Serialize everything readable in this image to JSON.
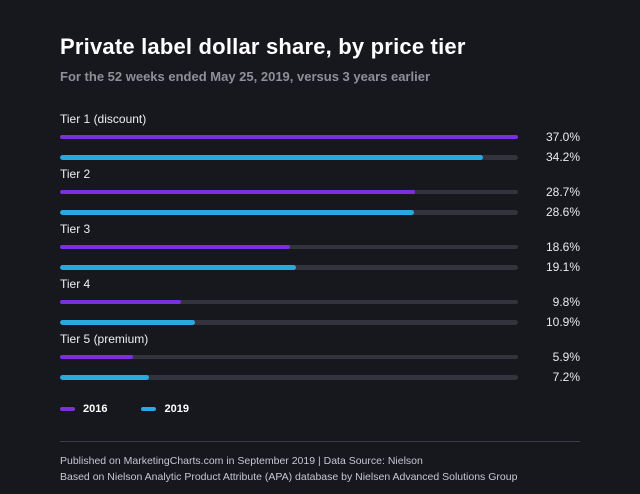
{
  "title": "Private label dollar share, by price tier",
  "subtitle": "For the 52 weeks ended May 25, 2019, versus 3 years earlier",
  "chart_data": {
    "type": "bar",
    "orientation": "horizontal",
    "title": "Private label dollar share, by price tier",
    "subtitle": "For the 52 weeks ended May 25, 2019, versus 3 years earlier",
    "categories": [
      "Tier 1 (discount)",
      "Tier 2",
      "Tier 3",
      "Tier 4",
      "Tier 5 (premium)"
    ],
    "series": [
      {
        "name": "2016",
        "color": "#7b2fe0",
        "thickness": 4,
        "values": [
          37.0,
          28.7,
          18.6,
          9.8,
          5.9
        ]
      },
      {
        "name": "2019",
        "color": "#29a9e1",
        "thickness": 5,
        "values": [
          34.2,
          28.6,
          19.1,
          10.9,
          7.2
        ]
      }
    ],
    "value_labels": [
      [
        "37.0%",
        "34.2%"
      ],
      [
        "28.7%",
        "28.6%"
      ],
      [
        "18.6%",
        "19.1%"
      ],
      [
        "9.8%",
        "10.9%"
      ],
      [
        "5.9%",
        "7.2%"
      ]
    ],
    "xlim": [
      0,
      37
    ],
    "value_suffix": "%",
    "grid": false,
    "legend_position": "bottom-left"
  },
  "colors": {
    "background": "#17171e",
    "track": "#33333e",
    "accent_2016": "#7b2fe0",
    "accent_2019": "#29a9e1"
  },
  "footer": {
    "line1": "Published on MarketingCharts.com in September 2019   |   Data Source: Nielson",
    "line2": "Based on Nielson Analytic Product Attribute (APA) database by Nielsen Advanced Solutions Group"
  }
}
